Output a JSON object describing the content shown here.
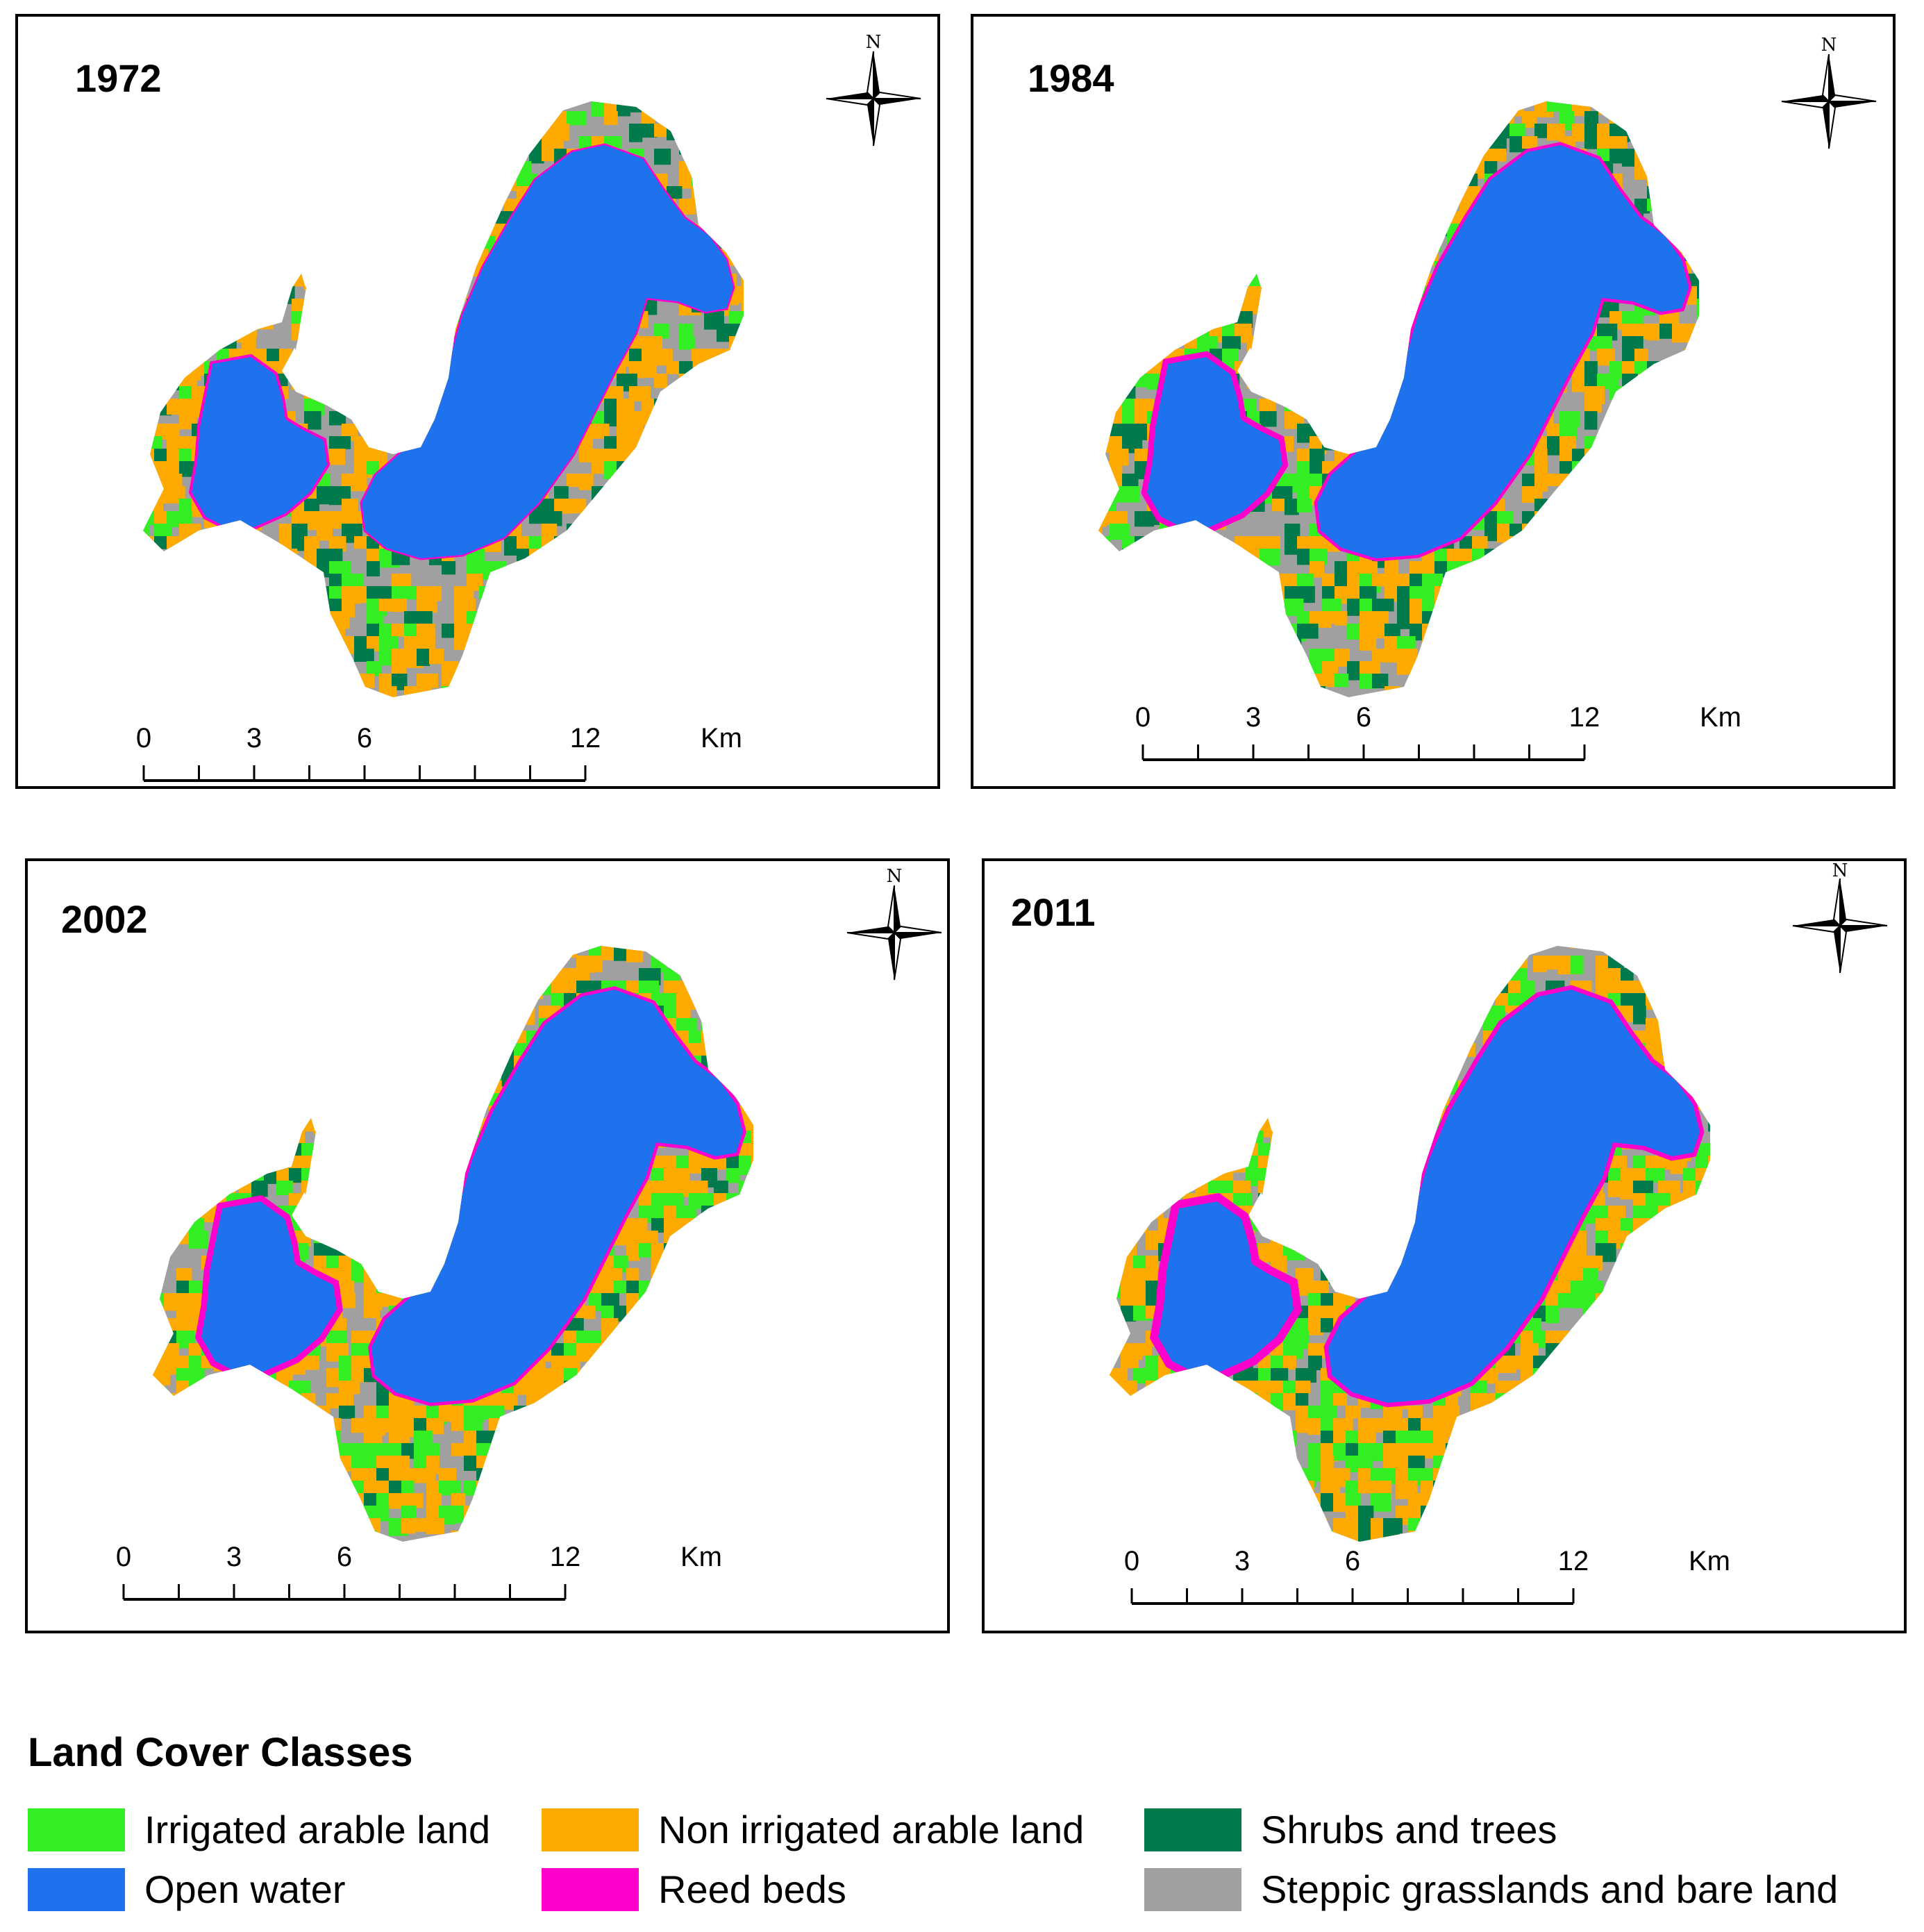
{
  "colors": {
    "irrigated": "#33ee22",
    "non_irrigated": "#ffaa00",
    "shrubs": "#007a4b",
    "water": "#1f72ee",
    "reed": "#ff00cc",
    "steppic": "#a0a0a0"
  },
  "panels": [
    {
      "year": "1972",
      "north": "N",
      "scale": {
        "ticks": [
          "0",
          "3",
          "6",
          "12"
        ],
        "unit": "Km"
      }
    },
    {
      "year": "1984",
      "north": "N",
      "scale": {
        "ticks": [
          "0",
          "3",
          "6",
          "12"
        ],
        "unit": "Km"
      }
    },
    {
      "year": "2002",
      "north": "N",
      "scale": {
        "ticks": [
          "0",
          "3",
          "6",
          "12"
        ],
        "unit": "Km"
      }
    },
    {
      "year": "2011",
      "north": "N",
      "scale": {
        "ticks": [
          "0",
          "3",
          "6",
          "12"
        ],
        "unit": "Km"
      }
    }
  ],
  "legend": {
    "title": "Land Cover Classes",
    "items": [
      {
        "label": "Irrigated arable land",
        "color": "#33ee22"
      },
      {
        "label": "Non irrigated arable land",
        "color": "#ffaa00"
      },
      {
        "label": "Shrubs and trees",
        "color": "#007a4b"
      },
      {
        "label": "Open water",
        "color": "#1f72ee"
      },
      {
        "label": "Reed beds",
        "color": "#ff00cc"
      },
      {
        "label": "Steppic grasslands and bare land",
        "color": "#a0a0a0"
      }
    ]
  }
}
